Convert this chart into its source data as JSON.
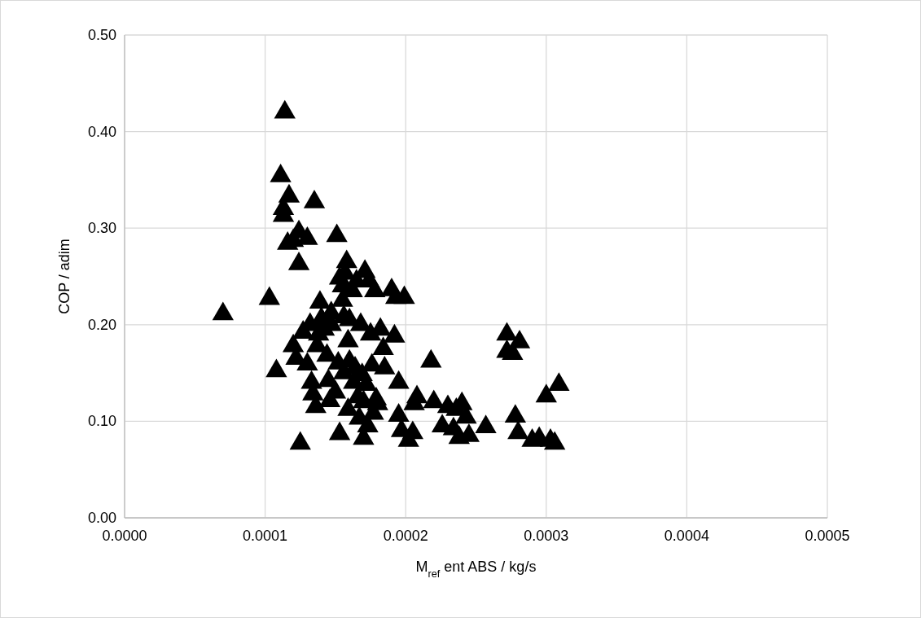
{
  "chart_data": {
    "type": "scatter",
    "xlabel": "M$_{ref}$ ent ABS / kg/s",
    "ylabel": "COP / adim",
    "xlim": [
      0,
      0.0005
    ],
    "xticks": [
      {
        "value": 0,
        "label": "0.0000"
      },
      {
        "value": 0.0001,
        "label": "0.0001"
      },
      {
        "value": 0.0002,
        "label": "0.0002"
      },
      {
        "value": 0.0003,
        "label": "0.0003"
      },
      {
        "value": 0.0004,
        "label": "0.0004"
      },
      {
        "value": 0.0005,
        "label": "0.0005"
      }
    ],
    "ylim": [
      0,
      0.5
    ],
    "yticks": [
      {
        "value": 0,
        "label": "0.00"
      },
      {
        "value": 0.1,
        "label": "0.10"
      },
      {
        "value": 0.2,
        "label": "0.20"
      },
      {
        "value": 0.3,
        "label": "0.30"
      },
      {
        "value": 0.4,
        "label": "0.40"
      },
      {
        "value": 0.5,
        "label": "0.50"
      }
    ],
    "grid": true,
    "marker": "triangle",
    "series": [
      {
        "color": "#000000",
        "x": [
          7e-05,
          0.000103,
          0.000108,
          0.000111,
          0.000114,
          0.000113,
          0.000113,
          0.000117,
          0.000116,
          0.00012,
          0.000124,
          0.00013,
          0.000124,
          0.000135,
          0.000151,
          0.00012,
          0.000122,
          0.000125,
          0.000127,
          0.00013,
          0.000132,
          0.000133,
          0.000134,
          0.000136,
          0.000137,
          0.000138,
          0.000139,
          0.00014,
          0.000142,
          0.000144,
          0.000145,
          0.000146,
          0.000147,
          0.000147,
          0.00015,
          0.000152,
          0.000153,
          0.000153,
          0.000155,
          0.000155,
          0.000156,
          0.000156,
          0.000157,
          0.000158,
          0.000159,
          0.000159,
          0.00016,
          0.00016,
          0.000162,
          0.000163,
          0.000164,
          0.000165,
          0.000166,
          0.000167,
          0.000168,
          0.000169,
          0.00017,
          0.00017,
          0.000171,
          0.000172,
          0.000173,
          0.000174,
          0.000175,
          0.000176,
          0.000177,
          0.000178,
          0.000179,
          0.00018,
          0.000182,
          0.000184,
          0.000185,
          0.00019,
          0.000192,
          0.000193,
          0.000195,
          0.000195,
          0.000197,
          0.000199,
          0.000202,
          0.000205,
          0.000206,
          0.000208,
          0.000218,
          0.00022,
          0.000226,
          0.00023,
          0.000234,
          0.000236,
          0.000238,
          0.00024,
          0.000243,
          0.000245,
          0.000257,
          0.000272,
          0.000272,
          0.000276,
          0.000278,
          0.00028,
          0.000281,
          0.00029,
          0.000295,
          0.0003,
          0.000303,
          0.000306,
          0.000309
        ],
        "values": [
          0.211,
          0.227,
          0.152,
          0.354,
          0.42,
          0.32,
          0.313,
          0.333,
          0.284,
          0.287,
          0.296,
          0.289,
          0.263,
          0.327,
          0.292,
          0.178,
          0.165,
          0.077,
          0.192,
          0.159,
          0.2,
          0.14,
          0.128,
          0.115,
          0.178,
          0.19,
          0.223,
          0.206,
          0.195,
          0.168,
          0.142,
          0.121,
          0.2,
          0.212,
          0.13,
          0.16,
          0.087,
          0.248,
          0.24,
          0.225,
          0.208,
          0.15,
          0.253,
          0.265,
          0.183,
          0.112,
          0.162,
          0.205,
          0.235,
          0.14,
          0.155,
          0.245,
          0.125,
          0.103,
          0.2,
          0.148,
          0.082,
          0.12,
          0.255,
          0.138,
          0.095,
          0.245,
          0.19,
          0.158,
          0.108,
          0.235,
          0.123,
          0.118,
          0.195,
          0.175,
          0.155,
          0.236,
          0.188,
          0.228,
          0.14,
          0.106,
          0.09,
          0.228,
          0.08,
          0.088,
          0.118,
          0.125,
          0.162,
          0.12,
          0.095,
          0.115,
          0.092,
          0.112,
          0.083,
          0.118,
          0.104,
          0.085,
          0.094,
          0.19,
          0.172,
          0.17,
          0.105,
          0.088,
          0.182,
          0.08,
          0.082,
          0.126,
          0.08,
          0.077,
          0.138
        ]
      }
    ]
  }
}
